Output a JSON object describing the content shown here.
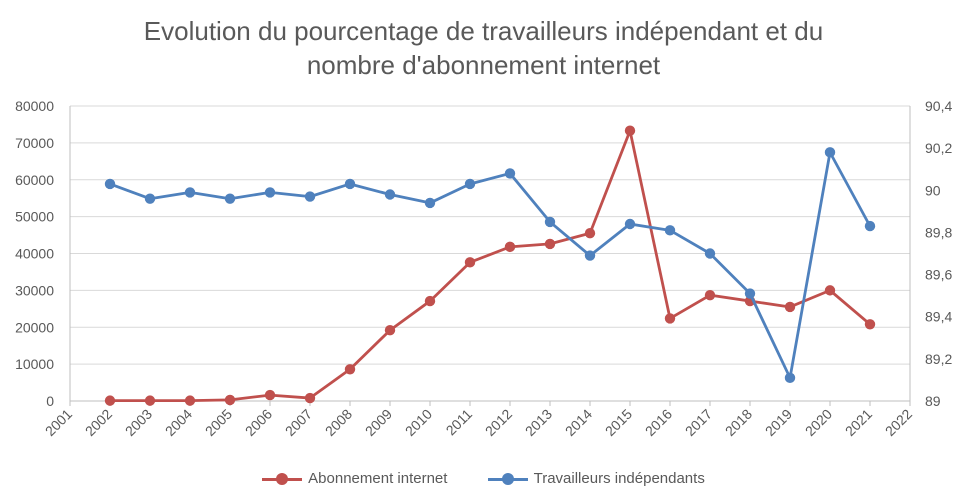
{
  "chart_data": {
    "type": "line",
    "title_lines": [
      "Evolution du pourcentage de travailleurs indépendant et du",
      "nombre d'abonnement internet"
    ],
    "x_categories": [
      "2001",
      "2002",
      "2003",
      "2004",
      "2005",
      "2006",
      "2007",
      "2008",
      "2009",
      "2010",
      "2011",
      "2012",
      "2013",
      "2014",
      "2015",
      "2016",
      "2017",
      "2018",
      "2019",
      "2020",
      "2021",
      "2022"
    ],
    "y_left": {
      "lim": [
        0,
        80000
      ],
      "ticks": [
        "0",
        "10000",
        "20000",
        "30000",
        "40000",
        "50000",
        "60000",
        "70000",
        "80000"
      ]
    },
    "y_right": {
      "lim": [
        89,
        90.4
      ],
      "ticks": [
        "89",
        "89,2",
        "89,4",
        "89,6",
        "89,8",
        "90",
        "90,2",
        "90,4"
      ]
    },
    "grid": true,
    "legend_position": "bottom",
    "series": [
      {
        "name": "Abonnement internet",
        "axis": "left",
        "color": "#C0504D",
        "x": [
          "2002",
          "2003",
          "2004",
          "2005",
          "2006",
          "2007",
          "2008",
          "2009",
          "2010",
          "2011",
          "2012",
          "2013",
          "2014",
          "2015",
          "2016",
          "2017",
          "2018",
          "2019",
          "2020",
          "2021"
        ],
        "values": [
          100,
          100,
          100,
          300,
          1600,
          800,
          8600,
          19200,
          27100,
          37600,
          41800,
          42600,
          45500,
          73300,
          22400,
          28700,
          27100,
          25500,
          30000,
          20800
        ]
      },
      {
        "name": "Travailleurs indépendants",
        "axis": "right",
        "color": "#4F81BD",
        "x": [
          "2002",
          "2003",
          "2004",
          "2005",
          "2006",
          "2007",
          "2008",
          "2009",
          "2010",
          "2011",
          "2012",
          "2013",
          "2014",
          "2015",
          "2016",
          "2017",
          "2018",
          "2019",
          "2020",
          "2021"
        ],
        "values": [
          90.03,
          89.96,
          89.99,
          89.96,
          89.99,
          89.97,
          90.03,
          89.98,
          89.94,
          90.03,
          90.08,
          89.85,
          89.69,
          89.84,
          89.81,
          89.7,
          89.51,
          89.11,
          90.18,
          89.83
        ]
      }
    ]
  }
}
